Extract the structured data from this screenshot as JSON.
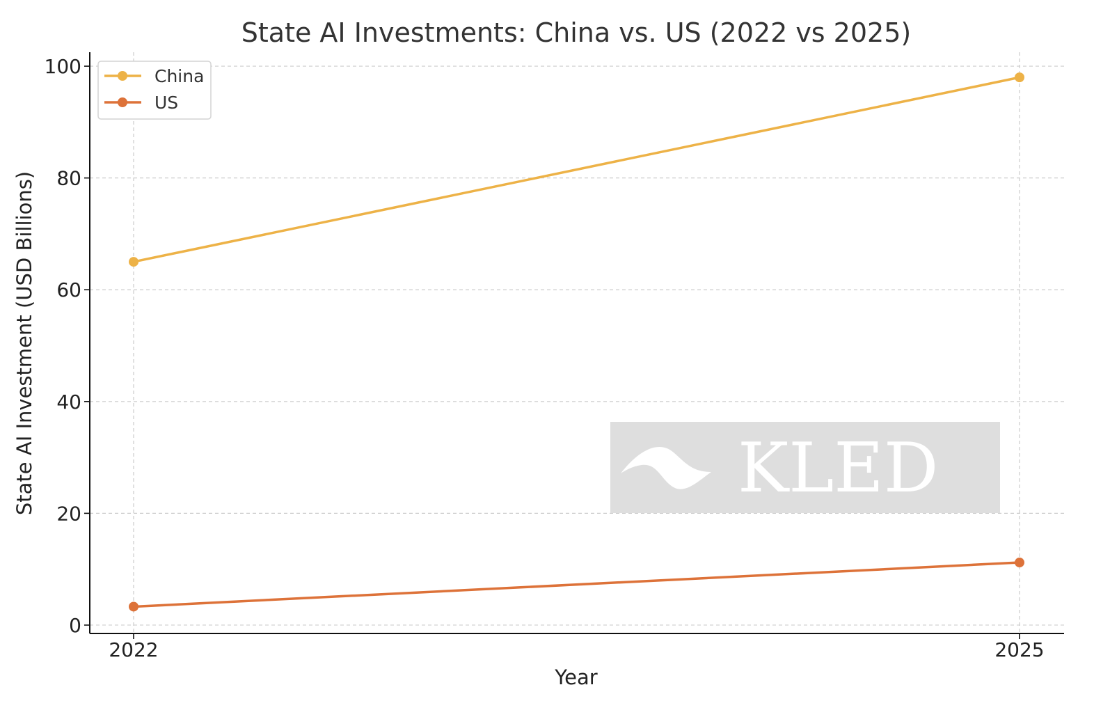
{
  "chart_data": {
    "type": "line",
    "title": "State AI Investments: China vs. US (2022 vs 2025)",
    "xlabel": "Year",
    "ylabel": "State AI Investment (USD Billions)",
    "categories": [
      "2022",
      "2025"
    ],
    "ylim": [
      -1.5,
      102.5
    ],
    "yticks": [
      0,
      20,
      40,
      60,
      80,
      100
    ],
    "grid": true,
    "legend_position": "top-left",
    "series": [
      {
        "name": "China",
        "values": [
          65,
          98
        ],
        "color": "#EDB247"
      },
      {
        "name": "US",
        "values": [
          3.3,
          11.2
        ],
        "color": "#DD7239"
      }
    ]
  },
  "watermark": {
    "text": "KLED",
    "icon": "kled-wave-logo"
  }
}
